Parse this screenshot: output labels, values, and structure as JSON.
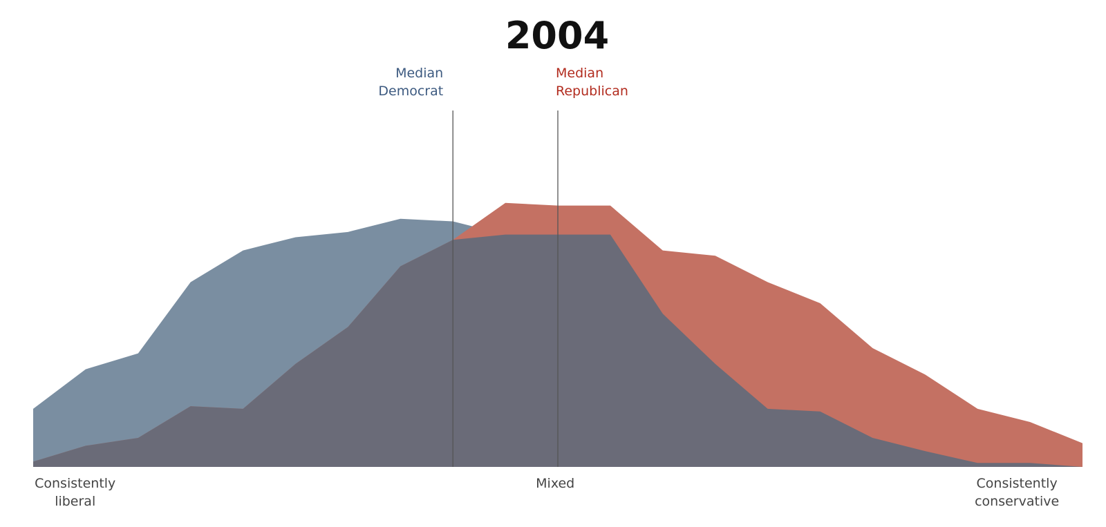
{
  "chart_data": {
    "type": "area",
    "title": "2004",
    "x": [
      -10,
      -9,
      -8,
      -7,
      -6,
      -5,
      -4,
      -3,
      -2,
      -1,
      0,
      1,
      2,
      3,
      4,
      5,
      6,
      7,
      8,
      9,
      10
    ],
    "series": [
      {
        "name": "Democrat",
        "color": "#7a8ea1",
        "values": [
          2.2,
          3.7,
          4.3,
          7.0,
          8.2,
          8.7,
          8.9,
          9.4,
          9.3,
          8.8,
          8.8,
          8.8,
          5.8,
          3.9,
          2.2,
          2.1,
          1.1,
          0.6,
          0.15,
          0.15,
          0.0
        ]
      },
      {
        "name": "Republican",
        "color": "#c47163",
        "values": [
          0.2,
          0.8,
          1.1,
          2.3,
          2.2,
          3.9,
          5.3,
          7.6,
          8.6,
          10.0,
          9.9,
          9.9,
          8.2,
          8.0,
          7.0,
          6.2,
          4.5,
          3.5,
          2.2,
          1.7,
          0.9
        ]
      }
    ],
    "overlap_color": "#6a6b78",
    "ylim": [
      0,
      13.5
    ],
    "xlim": [
      -10,
      10
    ],
    "x_tick_labels": [
      {
        "x": -9.2,
        "lines": [
          "Consistently",
          "liberal"
        ]
      },
      {
        "x": -0.05,
        "lines": [
          "Mixed"
        ]
      },
      {
        "x": 8.75,
        "lines": [
          "Consistently",
          "conservative"
        ]
      }
    ],
    "medians": [
      {
        "x": -2.0,
        "lines": [
          "Median",
          "Democrat"
        ],
        "color": "#3d5a80",
        "side": "left"
      },
      {
        "x": 0.0,
        "lines": [
          "Median",
          "Republican"
        ],
        "color": "#b22c1f",
        "side": "right"
      }
    ],
    "grid": false,
    "legend": "none"
  }
}
